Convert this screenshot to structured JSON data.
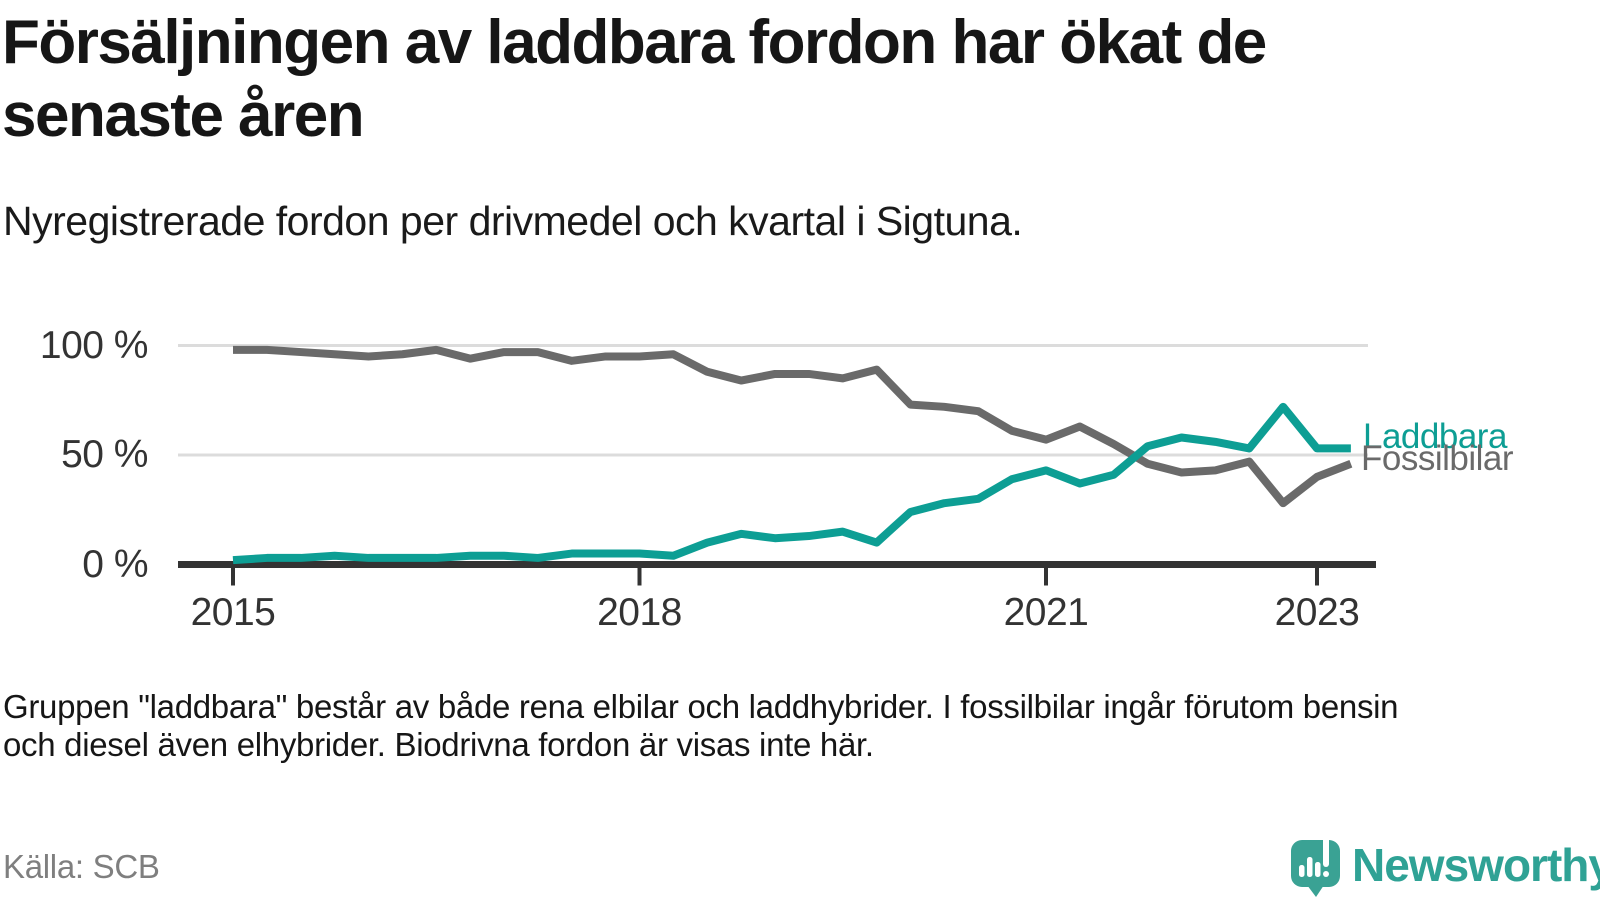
{
  "header": {
    "title_lines": [
      "Försäljningen av laddbara fordon har ökat de",
      "senaste åren"
    ],
    "subtitle": "Nyregistrerade fordon per drivmedel och kvartal i Sigtuna."
  },
  "chart_data": {
    "type": "line",
    "title": "Försäljningen av laddbara fordon har ökat de senaste åren",
    "subtitle": "Nyregistrerade fordon per drivmedel och kvartal i Sigtuna.",
    "xlabel": "",
    "ylabel": "",
    "unit": "%",
    "ylim": [
      0,
      100
    ],
    "grid": "horizontal",
    "legend_position": "line-end-labels-right",
    "y_ticks": [
      {
        "value": 100,
        "label": "100 %"
      },
      {
        "value": 50,
        "label": "50 %"
      },
      {
        "value": 0,
        "label": "0 %"
      }
    ],
    "x_ticks": [
      {
        "index": 0,
        "label": "2015"
      },
      {
        "index": 12,
        "label": "2018"
      },
      {
        "index": 24,
        "label": "2021"
      },
      {
        "index": 32,
        "label": "2023"
      }
    ],
    "quarters": [
      "2015Q1",
      "2015Q2",
      "2015Q3",
      "2015Q4",
      "2016Q1",
      "2016Q2",
      "2016Q3",
      "2016Q4",
      "2017Q1",
      "2017Q2",
      "2017Q3",
      "2017Q4",
      "2018Q1",
      "2018Q2",
      "2018Q3",
      "2018Q4",
      "2019Q1",
      "2019Q2",
      "2019Q3",
      "2019Q4",
      "2020Q1",
      "2020Q2",
      "2020Q3",
      "2020Q4",
      "2021Q1",
      "2021Q2",
      "2021Q3",
      "2021Q4",
      "2022Q1",
      "2022Q2",
      "2022Q3",
      "2022Q4",
      "2023Q1",
      "2023Q2"
    ],
    "series": [
      {
        "name": "Fossilbilar",
        "color": "#6a6a6a",
        "values": [
          98,
          98,
          97,
          96,
          95,
          96,
          98,
          94,
          97,
          97,
          93,
          95,
          95,
          96,
          88,
          84,
          87,
          87,
          85,
          89,
          73,
          72,
          70,
          61,
          57,
          63,
          55,
          46,
          42,
          43,
          47,
          28,
          40,
          46
        ]
      },
      {
        "name": "Laddbara",
        "color": "#0d9e94",
        "values": [
          2,
          3,
          3,
          4,
          3,
          3,
          3,
          4,
          4,
          3,
          5,
          5,
          5,
          4,
          10,
          14,
          12,
          13,
          15,
          10,
          24,
          28,
          30,
          39,
          43,
          37,
          41,
          54,
          58,
          56,
          53,
          72,
          53,
          53
        ]
      }
    ],
    "colors": {
      "gridline": "#dcdcdc",
      "axis": "#333333",
      "tick_label": "#333333"
    }
  },
  "footnote": {
    "lines": [
      "Gruppen \"laddbara\" består av både rena elbilar och laddhybrider. I fossilbilar ingår förutom bensin",
      "och diesel även elhybrider. Biodrivna fordon är visas inte här."
    ]
  },
  "source": {
    "label": "Källa: SCB"
  },
  "logo": {
    "text": "Newsworthy",
    "color": "#2fa295"
  }
}
